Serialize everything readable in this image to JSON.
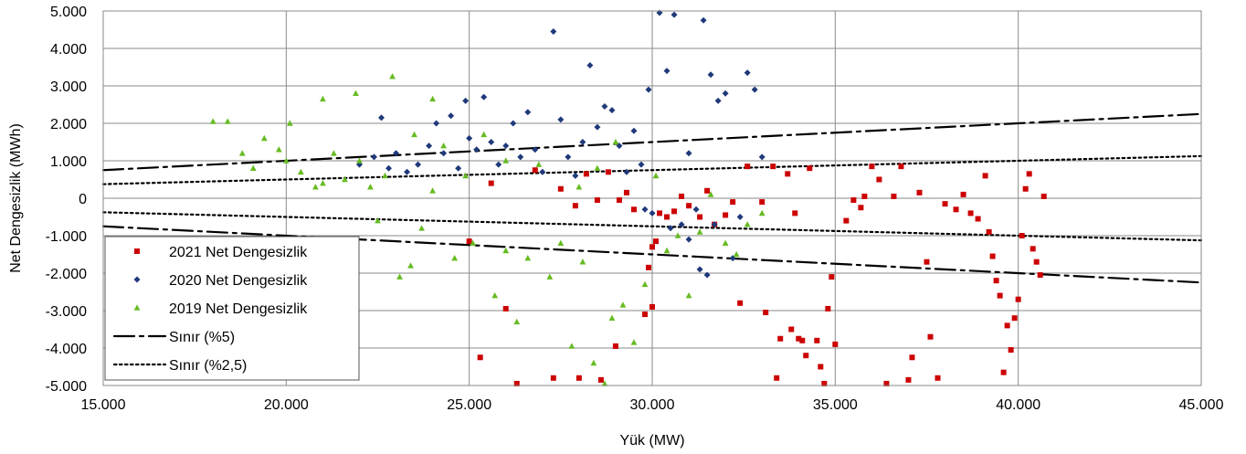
{
  "chart_data": {
    "type": "scatter",
    "title": "",
    "xlabel": "Yük (MW)",
    "ylabel": "Net Dengesizlik (MWh)",
    "xlim": [
      15000,
      45000
    ],
    "ylim": [
      -5000,
      5000
    ],
    "x_ticks": [
      15000,
      20000,
      25000,
      30000,
      35000,
      40000,
      45000
    ],
    "x_tick_labels": [
      "15.000",
      "20.000",
      "25.000",
      "30.000",
      "35.000",
      "40.000",
      "45.000"
    ],
    "y_ticks": [
      5000,
      4000,
      3000,
      2000,
      1000,
      0,
      -1000,
      -2000,
      -3000,
      -4000,
      -5000
    ],
    "y_tick_labels": [
      "5.000",
      "4.000",
      "3.000",
      "2.000",
      "1.000",
      "0",
      "-1.000",
      "-2.000",
      "-3.000",
      "-4.000",
      "-5.000"
    ],
    "grid": true,
    "legend_position": "bottom-left",
    "series": [
      {
        "name": "2021 Net Dengesizlik",
        "kind": "scatter",
        "marker": "square",
        "color": "#cc0000",
        "points": [
          [
            25000,
            -1150
          ],
          [
            25300,
            -4250
          ],
          [
            25600,
            400
          ],
          [
            26000,
            -2950
          ],
          [
            26300,
            -4950
          ],
          [
            26800,
            750
          ],
          [
            27300,
            -4800
          ],
          [
            27500,
            250
          ],
          [
            27900,
            -200
          ],
          [
            28000,
            -4800
          ],
          [
            28200,
            650
          ],
          [
            28500,
            -50
          ],
          [
            28600,
            -4850
          ],
          [
            28800,
            700
          ],
          [
            29000,
            -3950
          ],
          [
            29100,
            -50
          ],
          [
            29300,
            150
          ],
          [
            29500,
            -300
          ],
          [
            29800,
            -3100
          ],
          [
            29900,
            -1850
          ],
          [
            30000,
            -2900
          ],
          [
            30000,
            -1300
          ],
          [
            30100,
            -1150
          ],
          [
            30200,
            -400
          ],
          [
            30400,
            -500
          ],
          [
            30600,
            -350
          ],
          [
            30800,
            50
          ],
          [
            31000,
            -200
          ],
          [
            31300,
            -500
          ],
          [
            31500,
            200
          ],
          [
            31700,
            -700
          ],
          [
            32000,
            -450
          ],
          [
            32200,
            -100
          ],
          [
            32400,
            -2800
          ],
          [
            32600,
            850
          ],
          [
            33000,
            -100
          ],
          [
            33100,
            -3050
          ],
          [
            33300,
            850
          ],
          [
            33400,
            -4800
          ],
          [
            33500,
            -3750
          ],
          [
            33700,
            650
          ],
          [
            33800,
            -3500
          ],
          [
            33900,
            -400
          ],
          [
            34000,
            -3750
          ],
          [
            34100,
            -3800
          ],
          [
            34200,
            -4200
          ],
          [
            34300,
            800
          ],
          [
            34500,
            -3800
          ],
          [
            34600,
            -4500
          ],
          [
            34700,
            -4950
          ],
          [
            34800,
            -2950
          ],
          [
            34900,
            -2100
          ],
          [
            35000,
            -3900
          ],
          [
            35300,
            -600
          ],
          [
            35500,
            -50
          ],
          [
            35700,
            -250
          ],
          [
            35800,
            50
          ],
          [
            36000,
            850
          ],
          [
            36200,
            500
          ],
          [
            36400,
            -4950
          ],
          [
            36600,
            50
          ],
          [
            36800,
            850
          ],
          [
            37000,
            -4850
          ],
          [
            37100,
            -4250
          ],
          [
            37300,
            150
          ],
          [
            37500,
            -1700
          ],
          [
            37600,
            -3700
          ],
          [
            37800,
            -4800
          ],
          [
            38000,
            -150
          ],
          [
            38300,
            -300
          ],
          [
            38500,
            100
          ],
          [
            38700,
            -400
          ],
          [
            38900,
            -550
          ],
          [
            39100,
            600
          ],
          [
            39200,
            -900
          ],
          [
            39300,
            -1550
          ],
          [
            39400,
            -2200
          ],
          [
            39500,
            -2600
          ],
          [
            39600,
            -4650
          ],
          [
            39700,
            -3400
          ],
          [
            39800,
            -4050
          ],
          [
            39900,
            -3200
          ],
          [
            40000,
            -2700
          ],
          [
            40100,
            -1000
          ],
          [
            40200,
            250
          ],
          [
            40300,
            650
          ],
          [
            40400,
            -1350
          ],
          [
            40500,
            -1700
          ],
          [
            40600,
            -2050
          ],
          [
            40700,
            50
          ]
        ]
      },
      {
        "name": "2020 Net Dengesizlik",
        "kind": "scatter",
        "marker": "diamond",
        "color": "#1f3a7a",
        "points": [
          [
            22000,
            900
          ],
          [
            22400,
            1100
          ],
          [
            22600,
            2150
          ],
          [
            22800,
            800
          ],
          [
            23000,
            1200
          ],
          [
            23300,
            700
          ],
          [
            23600,
            900
          ],
          [
            23900,
            1400
          ],
          [
            24100,
            2000
          ],
          [
            24300,
            1200
          ],
          [
            24500,
            2200
          ],
          [
            24700,
            800
          ],
          [
            24900,
            2600
          ],
          [
            25000,
            1600
          ],
          [
            25200,
            1300
          ],
          [
            25400,
            2700
          ],
          [
            25600,
            1500
          ],
          [
            25800,
            900
          ],
          [
            26000,
            1400
          ],
          [
            26200,
            2000
          ],
          [
            26400,
            1100
          ],
          [
            26600,
            2300
          ],
          [
            26800,
            1300
          ],
          [
            27000,
            700
          ],
          [
            27300,
            4450
          ],
          [
            27500,
            2100
          ],
          [
            27700,
            1100
          ],
          [
            27900,
            600
          ],
          [
            28100,
            1500
          ],
          [
            28300,
            3550
          ],
          [
            28500,
            1900
          ],
          [
            28700,
            2450
          ],
          [
            28900,
            2350
          ],
          [
            29100,
            1400
          ],
          [
            29300,
            700
          ],
          [
            29500,
            1800
          ],
          [
            29700,
            900
          ],
          [
            29900,
            2900
          ],
          [
            30000,
            -400
          ],
          [
            30200,
            4950
          ],
          [
            30400,
            3400
          ],
          [
            30600,
            4900
          ],
          [
            30800,
            -700
          ],
          [
            31000,
            1200
          ],
          [
            31200,
            -300
          ],
          [
            31400,
            4750
          ],
          [
            31600,
            3300
          ],
          [
            31800,
            2600
          ],
          [
            32000,
            2800
          ],
          [
            32200,
            -1600
          ],
          [
            32400,
            -500
          ],
          [
            32600,
            3350
          ],
          [
            32800,
            2900
          ],
          [
            33000,
            1100
          ],
          [
            31300,
            -1900
          ],
          [
            31500,
            -2050
          ],
          [
            31000,
            -1100
          ],
          [
            30500,
            -800
          ],
          [
            29800,
            -300
          ],
          [
            31700,
            -700
          ]
        ]
      },
      {
        "name": "2019 Net Dengesizlik",
        "kind": "scatter",
        "marker": "triangle",
        "color": "#66bb22",
        "points": [
          [
            18000,
            2050
          ],
          [
            18400,
            2050
          ],
          [
            18800,
            1200
          ],
          [
            19100,
            800
          ],
          [
            19400,
            1600
          ],
          [
            19800,
            1300
          ],
          [
            20000,
            1000
          ],
          [
            20100,
            2000
          ],
          [
            20400,
            700
          ],
          [
            20800,
            300
          ],
          [
            21000,
            2650
          ],
          [
            21300,
            1200
          ],
          [
            21600,
            500
          ],
          [
            21900,
            2800
          ],
          [
            22000,
            1000
          ],
          [
            22300,
            300
          ],
          [
            22700,
            600
          ],
          [
            22900,
            3250
          ],
          [
            23100,
            -2100
          ],
          [
            23400,
            -1800
          ],
          [
            23700,
            -800
          ],
          [
            24000,
            2650
          ],
          [
            24300,
            1400
          ],
          [
            24600,
            -1600
          ],
          [
            24900,
            600
          ],
          [
            25100,
            -1200
          ],
          [
            25400,
            1700
          ],
          [
            25700,
            -2600
          ],
          [
            26000,
            -1400
          ],
          [
            26300,
            -3300
          ],
          [
            26600,
            -1600
          ],
          [
            26900,
            900
          ],
          [
            27200,
            -2100
          ],
          [
            27500,
            -1200
          ],
          [
            27800,
            -3950
          ],
          [
            28100,
            -1700
          ],
          [
            28400,
            -4400
          ],
          [
            28700,
            -4950
          ],
          [
            28900,
            -3200
          ],
          [
            29200,
            -2850
          ],
          [
            29500,
            -3850
          ],
          [
            29800,
            -2300
          ],
          [
            30100,
            600
          ],
          [
            30400,
            -1400
          ],
          [
            30700,
            -1000
          ],
          [
            31000,
            -2600
          ],
          [
            31300,
            -900
          ],
          [
            31600,
            100
          ],
          [
            32000,
            -1200
          ],
          [
            32300,
            -1500
          ],
          [
            32600,
            -700
          ],
          [
            33000,
            -400
          ],
          [
            28000,
            300
          ],
          [
            28500,
            800
          ],
          [
            29000,
            1500
          ],
          [
            26000,
            1000
          ],
          [
            24000,
            200
          ],
          [
            21000,
            400
          ],
          [
            22500,
            -600
          ],
          [
            23500,
            1700
          ]
        ]
      },
      {
        "name": "Sınır (%5)",
        "kind": "line",
        "dash": "dash-dot",
        "color": "#000000",
        "upper": [
          [
            15000,
            750
          ],
          [
            45000,
            2250
          ]
        ],
        "lower": [
          [
            15000,
            -750
          ],
          [
            45000,
            -2250
          ]
        ]
      },
      {
        "name": "Sınır (%2,5)",
        "kind": "line",
        "dash": "dotted",
        "color": "#000000",
        "upper": [
          [
            15000,
            375
          ],
          [
            45000,
            1125
          ]
        ],
        "lower": [
          [
            15000,
            -375
          ],
          [
            45000,
            -1125
          ]
        ]
      }
    ]
  }
}
